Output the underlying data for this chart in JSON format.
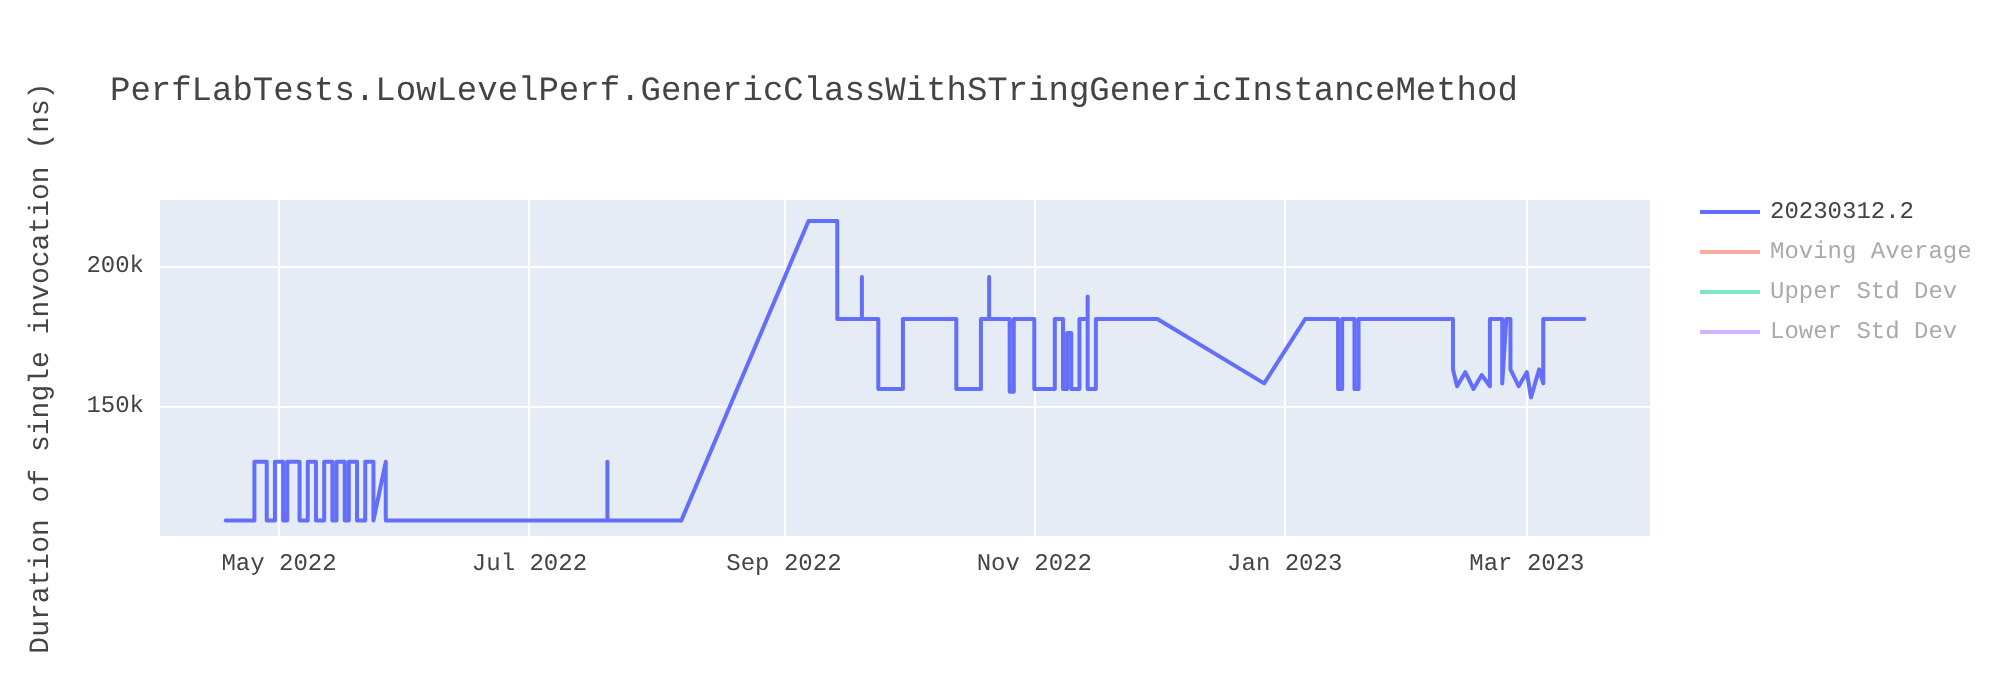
{
  "chart_data": {
    "type": "line",
    "title": "PerfLabTests.LowLevelPerf.GenericClassWithSTringGenericInstanceMethod",
    "ylabel": "Duration of single invocation (ns)",
    "xlim": [
      "2022-04-02",
      "2023-03-31"
    ],
    "xticks": [
      {
        "value": "2022-05-01",
        "label": "May 2022"
      },
      {
        "value": "2022-07-01",
        "label": "Jul 2022"
      },
      {
        "value": "2022-09-01",
        "label": "Sep 2022"
      },
      {
        "value": "2022-11-01",
        "label": "Nov 2022"
      },
      {
        "value": "2023-01-01",
        "label": "Jan 2023"
      },
      {
        "value": "2023-03-01",
        "label": "Mar 2023"
      }
    ],
    "ylim": [
      103500,
      223500
    ],
    "yticks": [
      {
        "value": 150000,
        "label": "150k"
      },
      {
        "value": 200000,
        "label": "200k"
      }
    ],
    "grid": true,
    "legend": "top right",
    "marker": "none",
    "line_style": "solid",
    "series": [
      {
        "name": "20230312.2",
        "color": "#636efa",
        "x": [
          "2022-04-18",
          "2022-04-25",
          "2022-04-25",
          "2022-04-28",
          "2022-04-28",
          "2022-04-30",
          "2022-04-30",
          "2022-05-02",
          "2022-05-02",
          "2022-05-03",
          "2022-05-03",
          "2022-05-06",
          "2022-05-06",
          "2022-05-08",
          "2022-05-08",
          "2022-05-10",
          "2022-05-10",
          "2022-05-12",
          "2022-05-12",
          "2022-05-14",
          "2022-05-14",
          "2022-05-15",
          "2022-05-15",
          "2022-05-17",
          "2022-05-17",
          "2022-05-18",
          "2022-05-18",
          "2022-05-20",
          "2022-05-20",
          "2022-05-22",
          "2022-05-22",
          "2022-05-24",
          "2022-05-24",
          "2022-05-27",
          "2022-05-27",
          "2022-07-20",
          "2022-07-20",
          "2022-07-20",
          "2022-08-07",
          "2022-09-07",
          "2022-09-14",
          "2022-09-14",
          "2022-09-20",
          "2022-09-20",
          "2022-09-20",
          "2022-09-24",
          "2022-09-24",
          "2022-09-30",
          "2022-09-30",
          "2022-10-13",
          "2022-10-13",
          "2022-10-19",
          "2022-10-19",
          "2022-10-21",
          "2022-10-21",
          "2022-10-21",
          "2022-10-26",
          "2022-10-26",
          "2022-10-27",
          "2022-10-27",
          "2022-11-01",
          "2022-11-01",
          "2022-11-06",
          "2022-11-06",
          "2022-11-08",
          "2022-11-08",
          "2022-11-09",
          "2022-11-09",
          "2022-11-10",
          "2022-11-10",
          "2022-11-12",
          "2022-11-12",
          "2022-11-14",
          "2022-11-14",
          "2022-11-14",
          "2022-11-16",
          "2022-11-16",
          "2022-12-01",
          "2022-12-27",
          "2023-01-06",
          "2023-01-14",
          "2023-01-14",
          "2023-01-15",
          "2023-01-15",
          "2023-01-18",
          "2023-01-18",
          "2023-01-19",
          "2023-01-19",
          "2023-02-11",
          "2023-02-11",
          "2023-02-12",
          "2023-02-14",
          "2023-02-16",
          "2023-02-18",
          "2023-02-20",
          "2023-02-20",
          "2023-02-23",
          "2023-02-23",
          "2023-02-24",
          "2023-02-25",
          "2023-02-25",
          "2023-02-27",
          "2023-03-01",
          "2023-03-02",
          "2023-03-04",
          "2023-03-05",
          "2023-03-05",
          "2023-03-15"
        ],
        "values": [
          109000,
          109000,
          130000,
          130000,
          109000,
          109000,
          130000,
          130000,
          109000,
          109000,
          130000,
          130000,
          109000,
          109000,
          130000,
          130000,
          109000,
          109000,
          130000,
          130000,
          109000,
          109000,
          130000,
          130000,
          109000,
          109000,
          130000,
          130000,
          109000,
          109000,
          130000,
          130000,
          109000,
          130000,
          109000,
          109000,
          130000,
          109000,
          109000,
          216000,
          216000,
          181000,
          181000,
          196000,
          181000,
          181000,
          156000,
          156000,
          181000,
          181000,
          156000,
          156000,
          181000,
          181000,
          196000,
          181000,
          181000,
          155000,
          155000,
          181000,
          181000,
          156000,
          156000,
          181000,
          181000,
          156000,
          156000,
          176000,
          176000,
          156000,
          156000,
          181000,
          181000,
          189000,
          156000,
          156000,
          181000,
          181000,
          158000,
          181000,
          181000,
          156000,
          156000,
          181000,
          181000,
          156000,
          156000,
          181000,
          181000,
          163000,
          157000,
          162000,
          156000,
          161000,
          157000,
          181000,
          181000,
          158000,
          181000,
          181000,
          163000,
          157000,
          162000,
          153000,
          163000,
          158000,
          181000,
          181000
        ]
      },
      {
        "name": "Moving Average",
        "color": "#ef553b"
      },
      {
        "name": "Upper Std Dev",
        "color": "#00cc96"
      },
      {
        "name": "Lower Std Dev",
        "color": "#ab63fa"
      }
    ]
  }
}
